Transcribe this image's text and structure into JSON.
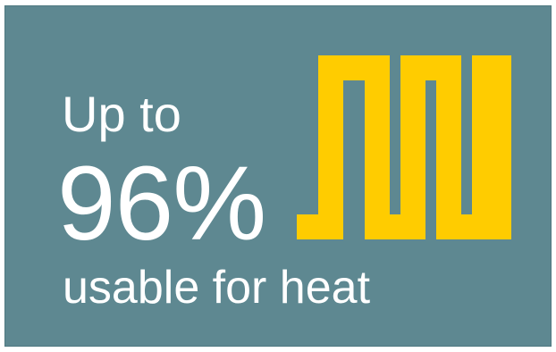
{
  "badge": {
    "line1": "Up to",
    "value": "96%",
    "line3": "usable for heat"
  },
  "icon": {
    "name": "heating-element-icon",
    "color": "#ffcc00"
  },
  "colors": {
    "background": "#5e8891",
    "text": "#ffffff",
    "accent": "#ffcc00"
  }
}
